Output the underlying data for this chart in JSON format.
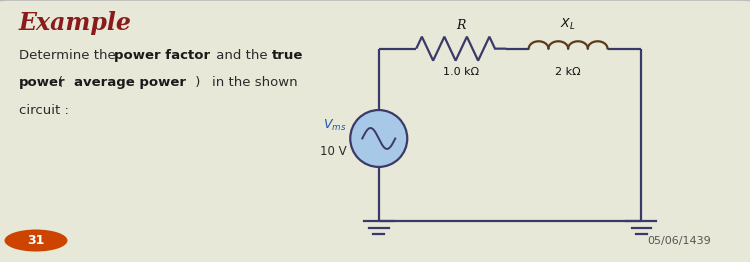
{
  "title": "Example",
  "title_color": "#8b1a1a",
  "bg_color": "#e8e8d8",
  "slide_bg": "#7a9a78",
  "wire_color": "#3a3a6a",
  "resistor_color": "#3a3a6a",
  "inductor_color": "#5a3a1a",
  "source_fill": "#a8c8e8",
  "source_outline": "#3a3a6a",
  "source_wave_color": "#3a3a6a",
  "label_color": "#2a2a5a",
  "text_color": "#2a2a2a",
  "bold_color": "#1a1a1a",
  "V_label_color": "#2255aa",
  "badge_color": "#cc4400",
  "badge_text_color": "#ffffff",
  "date_color": "#555555",
  "R_label": "R",
  "XL_label": "$X_L$",
  "R_value": "1.0 kΩ",
  "XL_value": "2 kΩ",
  "V_label": "$V_{ms}$",
  "V_value": "10 V",
  "slide_num": "31",
  "date": "05/06/1439",
  "circuit_lw": 1.6,
  "xlim": [
    0,
    10
  ],
  "ylim": [
    0,
    3.5
  ]
}
